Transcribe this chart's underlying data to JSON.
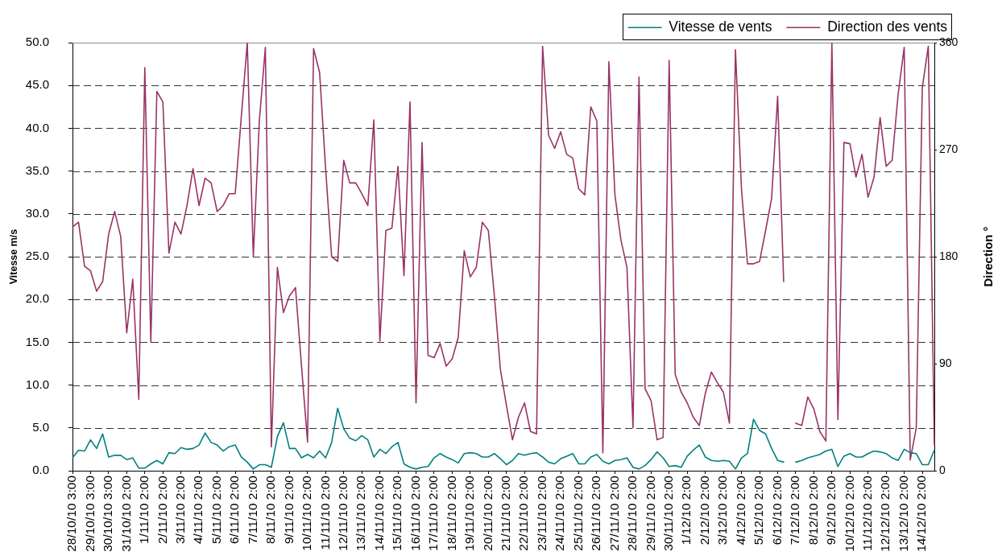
{
  "chart_data": {
    "type": "line",
    "categories": [
      "28/10/10 3:00",
      null,
      null,
      "29/10/10 3:00",
      null,
      null,
      "30/10/10 3:00",
      null,
      null,
      "31/10/10 2:00",
      null,
      null,
      "1/11/10 2:00",
      null,
      null,
      "2/11/10 2:00",
      null,
      null,
      "3/11/10 2:00",
      null,
      null,
      "4/11/10 2:00",
      null,
      null,
      "5/11/10 2:00",
      null,
      null,
      "6/11/10 2:00",
      null,
      null,
      "7/11/10 2:00",
      null,
      null,
      "8/11/10 2:00",
      null,
      null,
      "9/11/10 2:00",
      null,
      null,
      "10/11/10 2:00",
      null,
      null,
      "11/11/10 2:00",
      null,
      null,
      "12/11/10 2:00",
      null,
      null,
      "13/11/10 2:00",
      null,
      null,
      "14/11/10 2:00",
      null,
      null,
      "15/11/10 2:00",
      null,
      null,
      "16/11/10 2:00",
      null,
      null,
      "17/11/10 2:00",
      null,
      null,
      "18/11/10 2:00",
      null,
      null,
      "19/11/10 2:00",
      null,
      null,
      "20/11/10 2:00",
      null,
      null,
      "21/11/10 2:00",
      null,
      null,
      "22/11/10 2:00",
      null,
      null,
      "23/11/10 2:00",
      null,
      null,
      "24/11/10 2:00",
      null,
      null,
      "25/11/10 2:00",
      null,
      null,
      "26/11/10 2:00",
      null,
      null,
      "27/11/10 2:00",
      null,
      null,
      "28/11/10 2:00",
      null,
      null,
      "29/11/10 2:00",
      null,
      null,
      "30/11/10 2:00",
      null,
      null,
      "1/12/10 2:00",
      null,
      null,
      "2/12/10 2:00",
      null,
      null,
      "3/12/10 2:00",
      null,
      null,
      "4/12/10 2:00",
      null,
      null,
      "5/12/10 2:00",
      null,
      null,
      "6/12/10 2:00",
      null,
      null,
      "7/12/10 2:00",
      null,
      null,
      "8/12/10 2:00",
      null,
      null,
      "9/12/10 2:00",
      null,
      null,
      "10/12/10 2:00",
      null,
      null,
      "11/12/10 2:00",
      null,
      null,
      "12/12/10 2:00",
      null,
      null,
      "13/12/10 2:00",
      null,
      null,
      "14/12/10 2:00",
      null,
      null
    ],
    "series": [
      {
        "name": "Vitesse de vents",
        "color": "#00807f",
        "values": [
          1.5,
          2.4,
          2.3,
          3.6,
          2.6,
          4.3,
          1.6,
          1.8,
          1.8,
          1.3,
          1.5,
          0.3,
          0.3,
          0.8,
          1.2,
          0.8,
          2.1,
          2.0,
          2.7,
          2.5,
          2.6,
          3.0,
          4.4,
          3.3,
          3.0,
          2.3,
          2.8,
          3.0,
          1.6,
          1.0,
          0.2,
          0.7,
          0.7,
          0.4,
          4.0,
          5.6,
          2.6,
          2.6,
          1.5,
          1.9,
          1.5,
          2.3,
          1.5,
          3.3,
          7.3,
          4.9,
          3.8,
          3.5,
          4.1,
          3.6,
          1.6,
          2.5,
          2.0,
          2.8,
          3.3,
          0.8,
          0.4,
          0.2,
          0.4,
          0.5,
          1.5,
          2.0,
          1.6,
          1.3,
          0.9,
          2.0,
          2.1,
          2.0,
          1.6,
          1.6,
          2.0,
          1.4,
          0.7,
          1.2,
          2.0,
          1.8,
          2.0,
          2.1,
          1.6,
          1.0,
          0.8,
          1.4,
          1.7,
          2.0,
          0.8,
          0.8,
          1.6,
          1.9,
          1.1,
          0.8,
          1.2,
          1.3,
          1.5,
          0.4,
          0.2,
          0.6,
          1.3,
          2.2,
          1.5,
          0.5,
          0.6,
          0.4,
          1.7,
          2.4,
          3.0,
          1.6,
          1.2,
          1.1,
          1.2,
          1.1,
          0.2,
          1.5,
          2.0,
          6.0,
          4.7,
          4.3,
          2.6,
          1.2,
          1.0,
          null,
          1.0,
          1.2,
          1.5,
          1.7,
          1.9,
          2.3,
          2.5,
          0.5,
          1.7,
          2.0,
          1.6,
          1.6,
          2.0,
          2.3,
          2.2,
          2.0,
          1.5,
          1.2,
          2.5,
          2.1,
          2.0,
          0.7,
          0.7,
          2.4
        ]
      },
      {
        "name": "Direction des vents",
        "color": "#993366",
        "axis": "y2",
        "values": [
          205,
          209,
          172,
          168,
          151,
          159,
          199,
          218,
          197,
          116,
          161,
          60,
          339,
          108,
          319,
          310,
          183,
          209,
          199,
          223,
          254,
          223,
          246,
          242,
          218,
          223,
          233,
          233,
          297,
          360,
          180,
          294,
          356,
          20,
          171,
          133,
          147,
          154,
          88,
          24,
          355,
          335,
          254,
          180,
          176,
          261,
          242,
          242,
          233,
          223,
          295,
          109,
          202,
          204,
          256,
          164,
          310,
          57,
          276,
          97,
          95,
          107,
          88,
          94,
          112,
          185,
          163,
          171,
          209,
          202,
          147,
          85,
          55,
          26,
          45,
          57,
          33,
          31,
          357,
          282,
          271,
          285,
          266,
          263,
          237,
          232,
          306,
          294,
          15,
          344,
          232,
          194,
          171,
          36,
          331,
          69,
          59,
          26,
          28,
          345,
          81,
          66,
          57,
          45,
          38,
          65,
          83,
          74,
          66,
          40,
          354,
          237,
          174,
          174,
          176,
          202,
          229,
          315,
          159,
          null,
          40,
          38,
          62,
          52,
          33,
          25,
          360,
          43,
          276,
          275,
          247,
          266,
          230,
          247,
          297,
          256,
          261,
          317,
          356,
          9,
          36,
          322,
          357,
          22
        ]
      }
    ],
    "ylabel": "Vitesse m/s",
    "y2label": "Direction °",
    "ylim": [
      0,
      50
    ],
    "yticks": [
      {
        "value": 0,
        "label": "0.0"
      },
      {
        "value": 5,
        "label": "5.0"
      },
      {
        "value": 10,
        "label": "10.0"
      },
      {
        "value": 15,
        "label": "15.0"
      },
      {
        "value": 20,
        "label": "20.0"
      },
      {
        "value": 25,
        "label": "25.0"
      },
      {
        "value": 30,
        "label": "30.0"
      },
      {
        "value": 35,
        "label": "35.0"
      },
      {
        "value": 40,
        "label": "40.0"
      },
      {
        "value": 45,
        "label": "45.0"
      },
      {
        "value": 50,
        "label": "50.0"
      }
    ],
    "y2lim": [
      0,
      360
    ],
    "y2ticks": [
      0,
      90,
      180,
      270,
      360
    ],
    "grid": "y",
    "legend": "top right",
    "marker": "none",
    "line_style": "solid"
  }
}
